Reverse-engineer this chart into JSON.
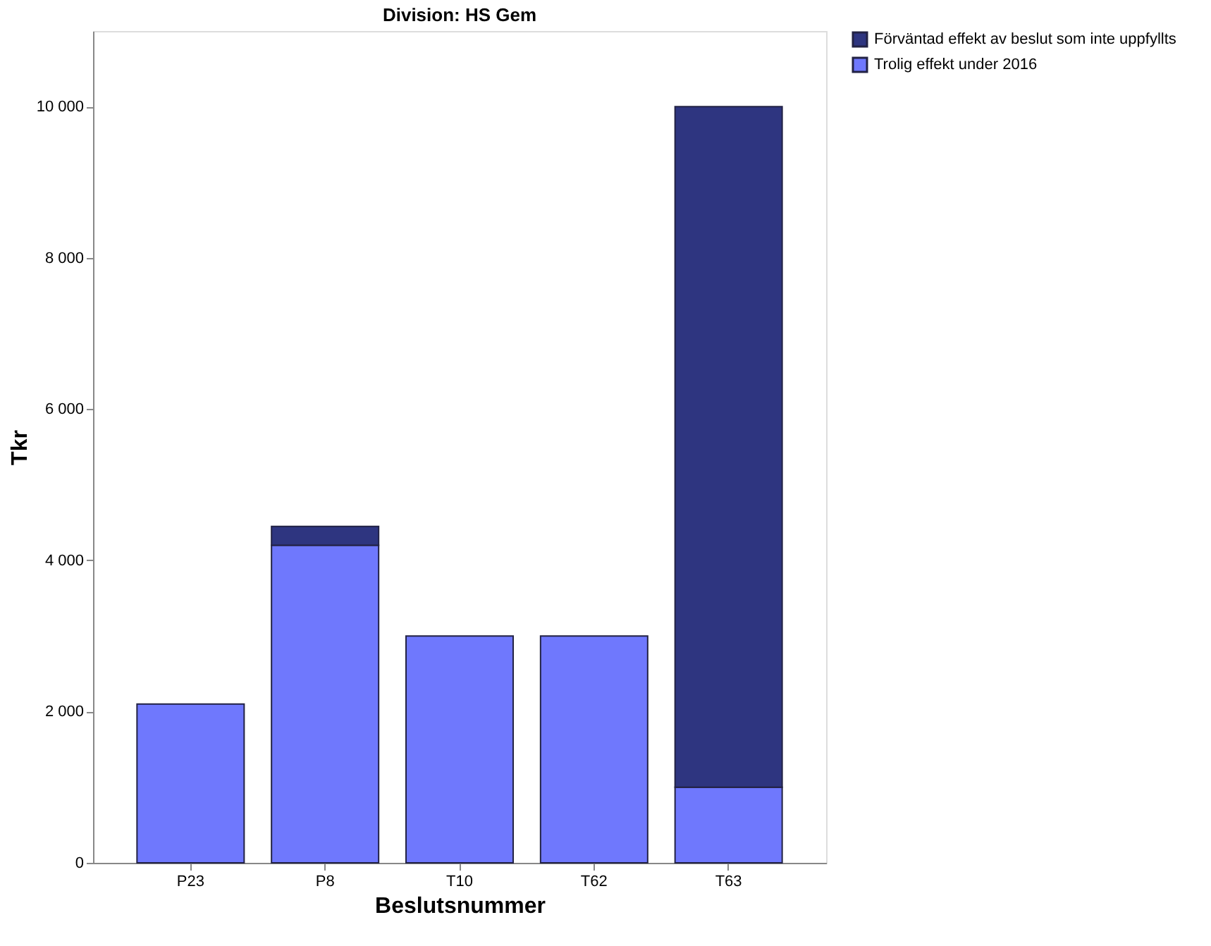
{
  "chart_data": {
    "type": "bar",
    "title": "Division: HS Gem",
    "xlabel": "Beslutsnummer",
    "ylabel": "Tkr",
    "categories": [
      "P23",
      "P8",
      "T10",
      "T62",
      "T63"
    ],
    "stacked": true,
    "series": [
      {
        "name": "Trolig effekt under 2016",
        "color": "#6f78fd",
        "values": [
          2100,
          4200,
          3000,
          3000,
          1000
        ]
      },
      {
        "name": "Förväntad effekt av beslut som inte uppfyllts",
        "color": "#2e3580",
        "values": [
          null,
          250,
          null,
          null,
          9000
        ]
      }
    ],
    "ylim": [
      0,
      11000
    ],
    "yticks": [
      {
        "value": 0,
        "label": "0"
      },
      {
        "value": 2000,
        "label": "2 000"
      },
      {
        "value": 4000,
        "label": "4 000"
      },
      {
        "value": 6000,
        "label": "6 000"
      },
      {
        "value": 8000,
        "label": "8 000"
      },
      {
        "value": 10000,
        "label": "10 000"
      }
    ],
    "grid": false,
    "legend": "top right"
  }
}
